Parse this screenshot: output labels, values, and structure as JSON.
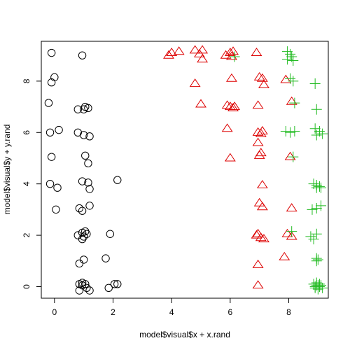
{
  "chart_data": {
    "type": "scatter",
    "xlabel": "model$visual$x + x.rand",
    "ylabel": "model$visual$y + y.rand",
    "xlim": [
      -0.45,
      9.35
    ],
    "ylim": [
      -0.45,
      9.55
    ],
    "x_ticks": [
      0,
      2,
      4,
      6,
      8
    ],
    "y_ticks": [
      0,
      2,
      4,
      6,
      8
    ],
    "tick_labels_x": [
      "0",
      "2",
      "4",
      "6",
      "8"
    ],
    "tick_labels_y": [
      "0",
      "2",
      "4",
      "6",
      "8"
    ],
    "grid": false,
    "legend": "none",
    "series": [
      {
        "marker": "circle",
        "color": "#000000",
        "points": [
          [
            -0.1,
            9.1
          ],
          [
            0.95,
            9.0
          ],
          [
            0.0,
            8.15
          ],
          [
            -0.1,
            7.95
          ],
          [
            -0.2,
            7.15
          ],
          [
            0.8,
            6.9
          ],
          [
            1.0,
            6.9
          ],
          [
            1.05,
            7.0
          ],
          [
            1.15,
            6.95
          ],
          [
            0.15,
            6.1
          ],
          [
            -0.15,
            6.0
          ],
          [
            0.8,
            6.0
          ],
          [
            1.0,
            5.9
          ],
          [
            1.2,
            5.85
          ],
          [
            -0.1,
            5.05
          ],
          [
            1.05,
            5.1
          ],
          [
            1.15,
            4.8
          ],
          [
            -0.15,
            4.0
          ],
          [
            0.1,
            3.85
          ],
          [
            0.95,
            4.1
          ],
          [
            1.15,
            4.05
          ],
          [
            1.2,
            3.8
          ],
          [
            2.15,
            4.15
          ],
          [
            0.85,
            3.05
          ],
          [
            0.95,
            2.95
          ],
          [
            1.2,
            3.15
          ],
          [
            0.05,
            3.0
          ],
          [
            0.8,
            2.0
          ],
          [
            0.95,
            2.1
          ],
          [
            1.05,
            2.15
          ],
          [
            1.0,
            1.95
          ],
          [
            1.1,
            2.05
          ],
          [
            1.9,
            2.05
          ],
          [
            0.95,
            1.85
          ],
          [
            1.75,
            1.1
          ],
          [
            0.85,
            0.9
          ],
          [
            1.0,
            1.05
          ],
          [
            0.85,
            0.1
          ],
          [
            0.95,
            0.15
          ],
          [
            1.05,
            0.1
          ],
          [
            0.95,
            0.05
          ],
          [
            1.1,
            -0.05
          ],
          [
            0.85,
            -0.15
          ],
          [
            1.2,
            -0.15
          ],
          [
            1.85,
            -0.05
          ],
          [
            2.05,
            0.1
          ],
          [
            2.15,
            0.1
          ]
        ]
      },
      {
        "marker": "triangle",
        "color": "#dd0000",
        "points": [
          [
            3.9,
            9.0
          ],
          [
            4.0,
            9.1
          ],
          [
            4.25,
            9.15
          ],
          [
            4.8,
            9.2
          ],
          [
            4.95,
            9.05
          ],
          [
            5.05,
            9.2
          ],
          [
            5.05,
            8.85
          ],
          [
            5.85,
            9.0
          ],
          [
            6.0,
            9.1
          ],
          [
            6.1,
            9.15
          ],
          [
            6.05,
            8.95
          ],
          [
            6.9,
            9.1
          ],
          [
            4.8,
            7.9
          ],
          [
            6.05,
            8.1
          ],
          [
            7.0,
            8.15
          ],
          [
            7.1,
            8.1
          ],
          [
            7.15,
            7.85
          ],
          [
            7.9,
            8.05
          ],
          [
            5.0,
            7.1
          ],
          [
            5.9,
            7.05
          ],
          [
            6.0,
            7.0
          ],
          [
            6.1,
            6.95
          ],
          [
            6.15,
            7.0
          ],
          [
            6.95,
            7.05
          ],
          [
            8.1,
            7.2
          ],
          [
            5.9,
            6.15
          ],
          [
            6.95,
            6.0
          ],
          [
            7.1,
            6.05
          ],
          [
            7.05,
            5.95
          ],
          [
            6.95,
            5.6
          ],
          [
            7.05,
            5.2
          ],
          [
            7.0,
            5.1
          ],
          [
            8.05,
            5.05
          ],
          [
            6.0,
            5.0
          ],
          [
            7.1,
            3.95
          ],
          [
            7.0,
            3.25
          ],
          [
            7.1,
            3.1
          ],
          [
            8.1,
            3.05
          ],
          [
            6.9,
            2.0
          ],
          [
            6.95,
            2.05
          ],
          [
            7.05,
            1.9
          ],
          [
            7.15,
            1.85
          ],
          [
            7.95,
            2.05
          ],
          [
            8.1,
            1.95
          ],
          [
            6.95,
            0.85
          ],
          [
            7.85,
            1.15
          ],
          [
            6.95,
            0.05
          ]
        ]
      },
      {
        "marker": "plus",
        "color": "#22bb22",
        "points": [
          [
            6.15,
            8.95
          ],
          [
            7.95,
            9.15
          ],
          [
            8.05,
            9.05
          ],
          [
            8.1,
            8.95
          ],
          [
            7.95,
            8.85
          ],
          [
            8.15,
            8.8
          ],
          [
            8.15,
            8.0
          ],
          [
            8.05,
            8.1
          ],
          [
            8.9,
            7.9
          ],
          [
            8.2,
            7.15
          ],
          [
            8.95,
            6.9
          ],
          [
            7.9,
            6.05
          ],
          [
            8.05,
            6.0
          ],
          [
            8.2,
            6.05
          ],
          [
            8.9,
            6.15
          ],
          [
            9.05,
            6.05
          ],
          [
            9.15,
            5.95
          ],
          [
            8.95,
            5.9
          ],
          [
            8.15,
            5.05
          ],
          [
            8.85,
            4.0
          ],
          [
            8.95,
            3.95
          ],
          [
            8.95,
            3.85
          ],
          [
            9.05,
            3.9
          ],
          [
            9.1,
            3.85
          ],
          [
            8.8,
            3.0
          ],
          [
            8.95,
            3.05
          ],
          [
            9.1,
            3.15
          ],
          [
            8.1,
            2.15
          ],
          [
            8.95,
            2.05
          ],
          [
            8.75,
            1.95
          ],
          [
            8.85,
            1.85
          ],
          [
            8.95,
            1.1
          ],
          [
            8.95,
            1.0
          ],
          [
            9.0,
            1.05
          ],
          [
            8.85,
            0.1
          ],
          [
            8.9,
            0.0
          ],
          [
            8.95,
            0.15
          ],
          [
            9.0,
            0.05
          ],
          [
            9.05,
            0.0
          ],
          [
            9.1,
            0.05
          ],
          [
            8.9,
            -0.05
          ],
          [
            9.0,
            -0.1
          ],
          [
            9.15,
            -0.05
          ],
          [
            8.95,
            0.05
          ],
          [
            9.05,
            0.1
          ]
        ]
      }
    ]
  }
}
